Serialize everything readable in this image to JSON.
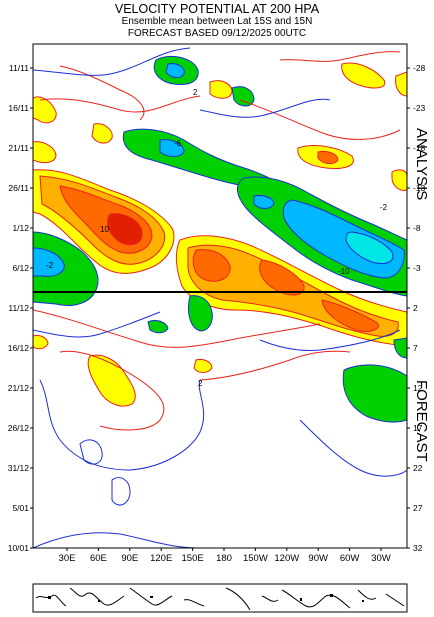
{
  "title": {
    "line1": "VELOCITY POTENTIAL AT 200 HPA",
    "line2": "Ensemble mean between  Lat 15S and 15N",
    "line3": "FORECAST  BASED 09/12/2025 00UTC"
  },
  "side_labels": {
    "analysis": "ANALYSIS",
    "forecast": "FORECAST"
  },
  "chart_data": {
    "type": "heatmap",
    "x_axis": {
      "ticks": [
        "30E",
        "60E",
        "90E",
        "120E",
        "150E",
        "180",
        "150W",
        "120W",
        "90W",
        "60W",
        "30W"
      ]
    },
    "y_axis_left": {
      "ticks": [
        "11/11",
        "16/11",
        "21/11",
        "26/11",
        "1/12",
        "6/12",
        "11/12",
        "16/12",
        "21/12",
        "26/12",
        "31/12",
        "5/01",
        "10/01"
      ]
    },
    "y_axis_right": {
      "ticks": [
        "-28",
        "-23",
        "-18",
        "-13",
        "-8",
        "-3",
        "2",
        "7",
        "12",
        "17",
        "22",
        "27",
        "32"
      ]
    },
    "analysis_forecast_divider": "between 6/12 and 11/12",
    "contour_labels": [
      "2",
      "-2",
      "-6",
      "10",
      "-10",
      "2",
      "-2"
    ],
    "colors": {
      "positive_lines": "#e8231c",
      "negative_lines": "#1a2fd4",
      "pos_2_6": "#ffff00",
      "pos_6_10": "#ffb000",
      "pos_10_14": "#ff6a00",
      "pos_14": "#e02000",
      "neg_2_6": "#00d000",
      "neg_6_10": "#00b8ff",
      "neg_10": "#00e6e6"
    }
  }
}
